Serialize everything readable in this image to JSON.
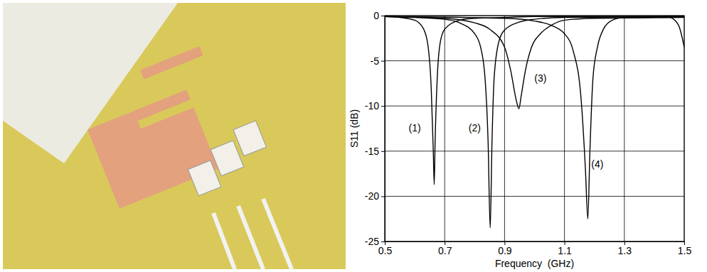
{
  "chart_data": {
    "type": "line",
    "x_label": "Frequency  (GHz)",
    "y_label": "S11 (dB)",
    "xlim": [
      0.5,
      1.5
    ],
    "xticks": [
      0.5,
      0.7,
      0.9,
      1.1,
      1.3,
      1.5
    ],
    "ylim": [
      -25,
      0
    ],
    "yticks": [
      0,
      -5,
      -10,
      -15,
      -20,
      -25
    ],
    "grid": true,
    "series": [
      {
        "color": "#000000",
        "line_style": "solid",
        "x": [
          0.5,
          0.55,
          0.6,
          0.63,
          0.645,
          0.655,
          0.662,
          0.665,
          0.668,
          0.675,
          0.685,
          0.7,
          0.75,
          0.8,
          0.9,
          1.0,
          1.5
        ],
        "values": [
          -0.1,
          -0.2,
          -0.5,
          -1.5,
          -3.5,
          -8,
          -15,
          -18.7,
          -14,
          -7,
          -3,
          -1.5,
          -0.5,
          -0.3,
          -0.2,
          -0.1,
          -0.1
        ]
      },
      {
        "color": "#000000",
        "line_style": "solid",
        "x": [
          0.5,
          0.6,
          0.7,
          0.75,
          0.8,
          0.82,
          0.835,
          0.845,
          0.852,
          0.858,
          0.865,
          0.88,
          0.9,
          0.95,
          1.0,
          1.1,
          1.5
        ],
        "values": [
          -0.1,
          -0.2,
          -0.4,
          -0.8,
          -2,
          -3.5,
          -7,
          -14,
          -23.5,
          -14,
          -7,
          -3,
          -1.6,
          -0.7,
          -0.4,
          -0.2,
          -0.1
        ]
      },
      {
        "color": "#000000",
        "line_style": "solid",
        "x": [
          0.5,
          0.7,
          0.8,
          0.85,
          0.9,
          0.92,
          0.94,
          0.948,
          0.955,
          0.97,
          0.99,
          1.02,
          1.06,
          1.1,
          1.2,
          1.5
        ],
        "values": [
          -0.1,
          -0.3,
          -0.8,
          -1.5,
          -3.5,
          -6,
          -9.5,
          -10.3,
          -9,
          -6,
          -3.5,
          -2,
          -1,
          -0.5,
          -0.3,
          -0.2
        ]
      },
      {
        "color": "#000000",
        "line_style": "solid",
        "x": [
          0.5,
          0.9,
          1.0,
          1.05,
          1.1,
          1.13,
          1.155,
          1.17,
          1.178,
          1.185,
          1.195,
          1.21,
          1.23,
          1.26,
          1.3,
          1.45,
          1.48,
          1.5
        ],
        "values": [
          -0.1,
          -0.3,
          -0.6,
          -1,
          -2,
          -4,
          -9,
          -17,
          -22.5,
          -15,
          -7,
          -3.5,
          -1.5,
          -0.5,
          -0.2,
          -0.2,
          -1,
          -3.5
        ]
      }
    ],
    "annotations": [
      {
        "text": "(1)",
        "x": 0.6,
        "y": -12.5
      },
      {
        "text": "(2)",
        "x": 0.8,
        "y": -12.5
      },
      {
        "text": "(3)",
        "x": 1.02,
        "y": -7
      },
      {
        "text": "(4)",
        "x": 1.21,
        "y": -16.5
      }
    ]
  }
}
